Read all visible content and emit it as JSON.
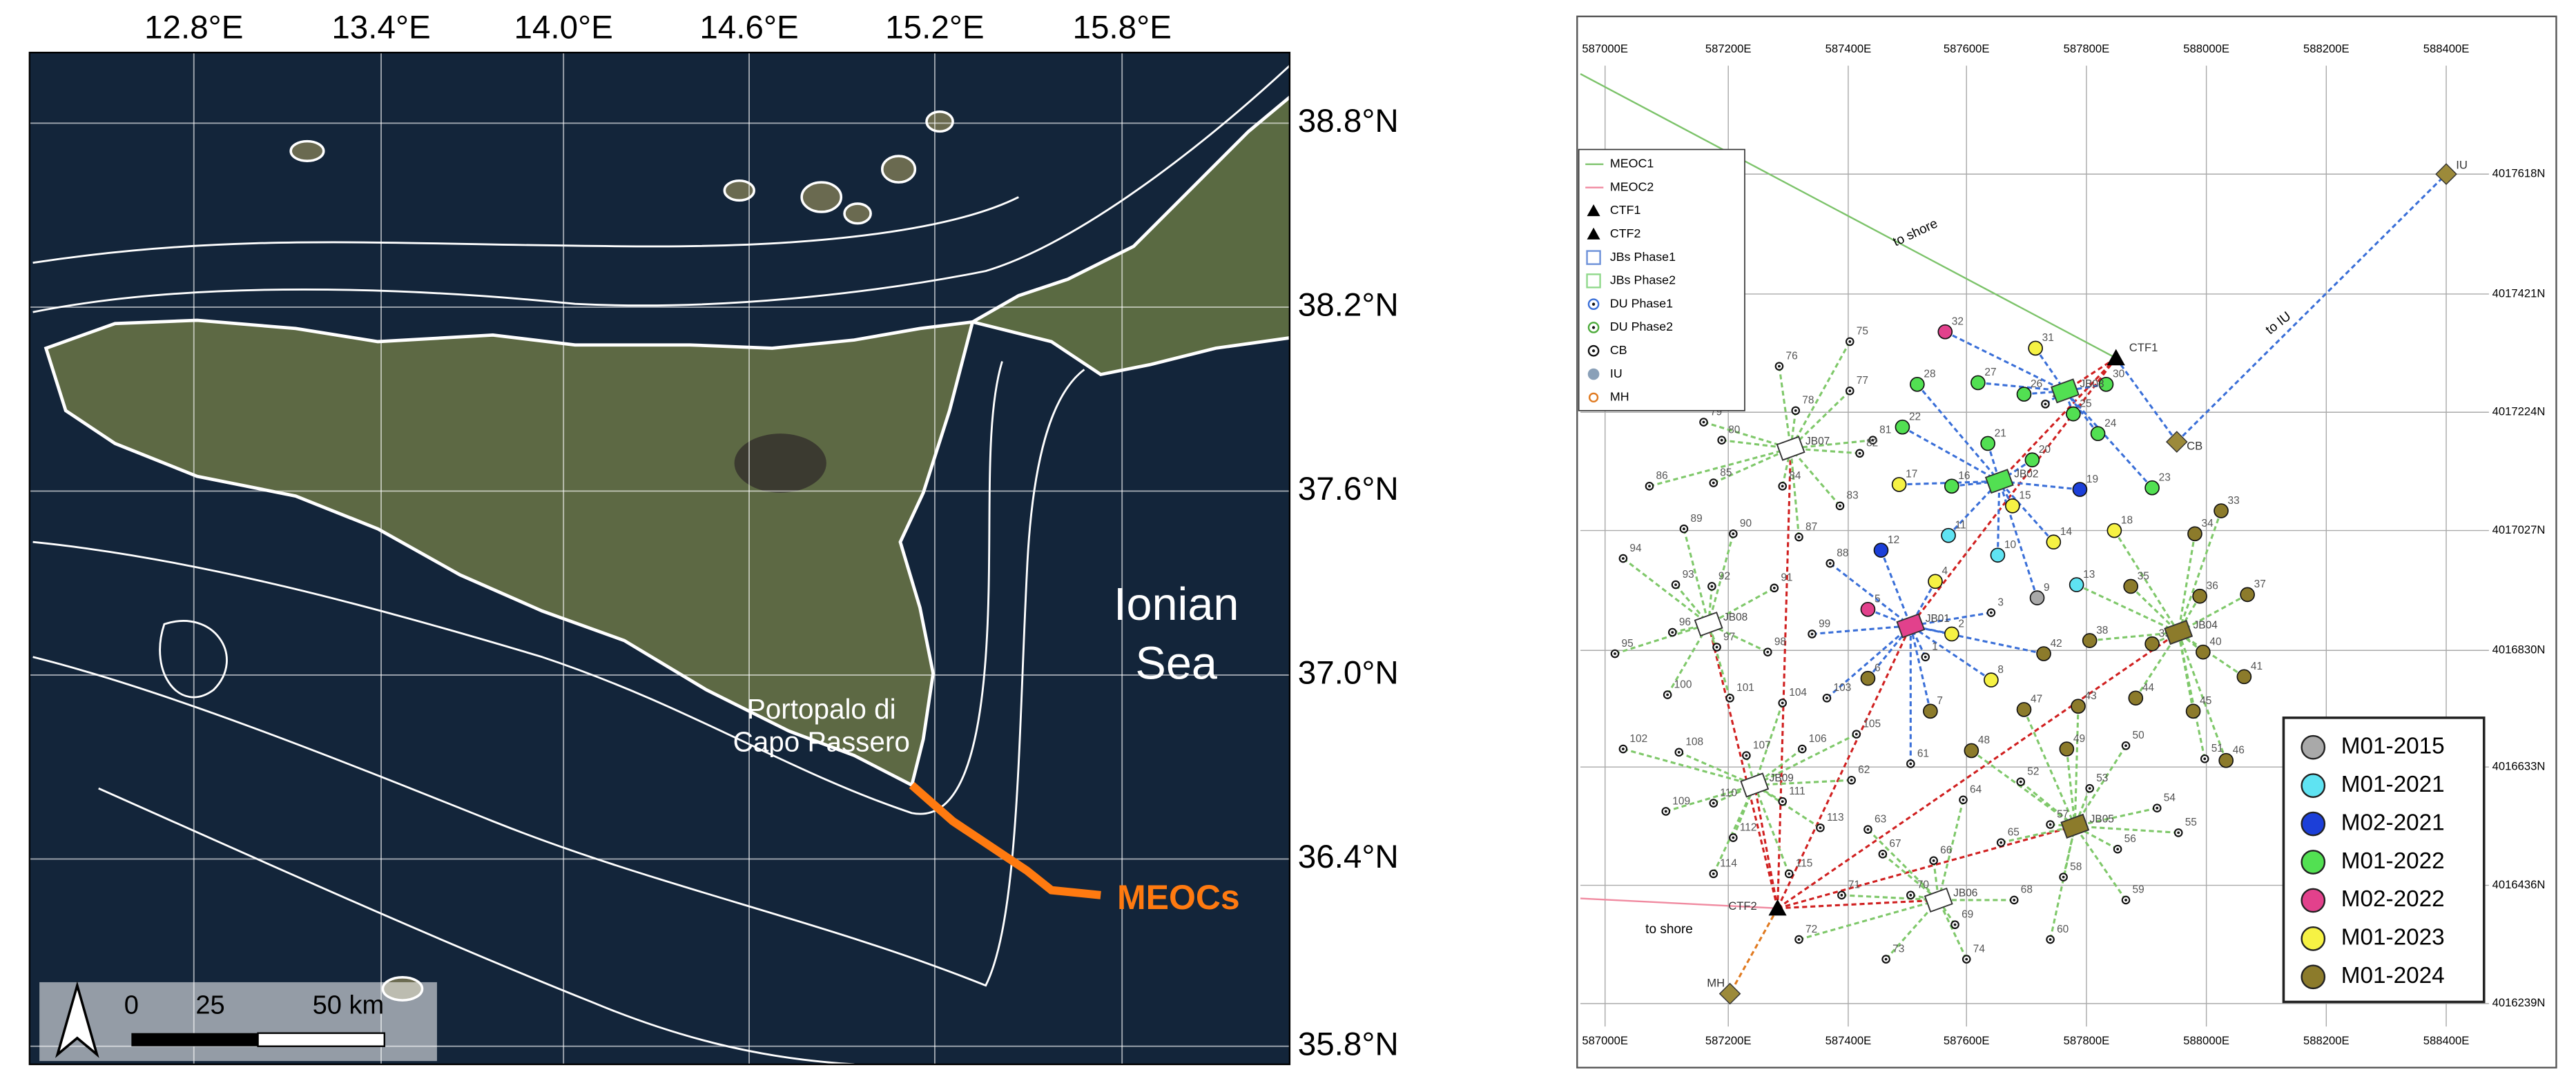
{
  "map": {
    "lon_labels": [
      "12.8°E",
      "13.4°E",
      "14.0°E",
      "14.6°E",
      "15.2°E",
      "15.8°E"
    ],
    "lat_labels": [
      "38.8°N",
      "38.2°N",
      "37.6°N",
      "37.0°N",
      "36.4°N",
      "35.8°N"
    ],
    "sea_label": [
      "Ionian",
      "Sea"
    ],
    "town_label": [
      "Portopalo di",
      "Capo Passero"
    ],
    "cable_label": "MEOCs",
    "scale_labels": [
      "0",
      "25",
      "50 km"
    ]
  },
  "layout": {
    "easting_labels": [
      "587000E",
      "587200E",
      "587400E",
      "587600E",
      "587800E",
      "588000E",
      "588200E",
      "588400E"
    ],
    "northing_labels": [
      "4017618N",
      "4017421N",
      "4017224N",
      "4017027N",
      "4016830N",
      "4016633N",
      "4016436N",
      "4016239N"
    ],
    "legend": [
      "MEOC1",
      "MEOC2",
      "CTF1",
      "CTF2",
      "JBs Phase1",
      "JBs Phase2",
      "DU Phase1",
      "DU Phase2",
      "CB",
      "IU",
      "MH"
    ],
    "stations": [
      "CTF1",
      "CTF2",
      "CB",
      "IU",
      "MH"
    ],
    "annotations": [
      "to shore",
      "to IU",
      "to shore"
    ],
    "junction_boxes": [
      "JB01",
      "JB02",
      "JB03",
      "JB04",
      "JB05",
      "JB06",
      "JB07",
      "JB08",
      "JB09"
    ],
    "nodes": [
      "1",
      "2",
      "3",
      "4",
      "5",
      "6",
      "7",
      "8",
      "9",
      "10",
      "11",
      "12",
      "13",
      "14",
      "15",
      "16",
      "17",
      "18",
      "19",
      "20",
      "21",
      "22",
      "23",
      "24",
      "25",
      "26",
      "27",
      "28",
      "29",
      "30",
      "31",
      "32",
      "33",
      "34",
      "35",
      "36",
      "37",
      "38",
      "39",
      "40",
      "41",
      "42",
      "43",
      "44",
      "45",
      "46",
      "47",
      "48",
      "49",
      "50",
      "51",
      "52",
      "53",
      "54",
      "55",
      "56",
      "57",
      "58",
      "59",
      "60",
      "61",
      "62",
      "63",
      "64",
      "65",
      "66",
      "67",
      "68",
      "69",
      "70",
      "71",
      "72",
      "73",
      "74",
      "75",
      "76",
      "77",
      "78",
      "79",
      "80",
      "81",
      "82",
      "83",
      "84",
      "85",
      "86",
      "87",
      "88",
      "89",
      "90",
      "91",
      "92",
      "93",
      "94",
      "95",
      "96",
      "97",
      "98",
      "99",
      "100",
      "101",
      "102",
      "103",
      "104",
      "105",
      "106",
      "107",
      "108",
      "109",
      "110",
      "111",
      "112",
      "113",
      "114",
      "115"
    ],
    "deployment_legend": [
      {
        "label": "M01-2015",
        "color": "#a9a9a9",
        "units": [
          "9"
        ]
      },
      {
        "label": "M01-2021",
        "color": "#5fe3f2",
        "units": [
          "10",
          "11",
          "13"
        ]
      },
      {
        "label": "M02-2021",
        "color": "#1c3fd8",
        "units": [
          "12",
          "19"
        ]
      },
      {
        "label": "M01-2022",
        "color": "#52e052",
        "units": [
          "16",
          "20",
          "21",
          "22",
          "23",
          "24",
          "25",
          "26",
          "27",
          "28",
          "30",
          "JB02",
          "JB03"
        ]
      },
      {
        "label": "M02-2022",
        "color": "#e2418c",
        "units": [
          "5",
          "32",
          "JB01"
        ]
      },
      {
        "label": "M01-2023",
        "color": "#f6f244",
        "units": [
          "2",
          "4",
          "8",
          "14",
          "15",
          "17",
          "18",
          "31"
        ]
      },
      {
        "label": "M01-2024",
        "color": "#8c7b2b",
        "units": [
          "6",
          "7",
          "33",
          "34",
          "35",
          "36",
          "37",
          "38",
          "39",
          "40",
          "41",
          "42",
          "43",
          "44",
          "45",
          "46",
          "47",
          "48",
          "49",
          "JB04",
          "JB05"
        ]
      }
    ]
  }
}
